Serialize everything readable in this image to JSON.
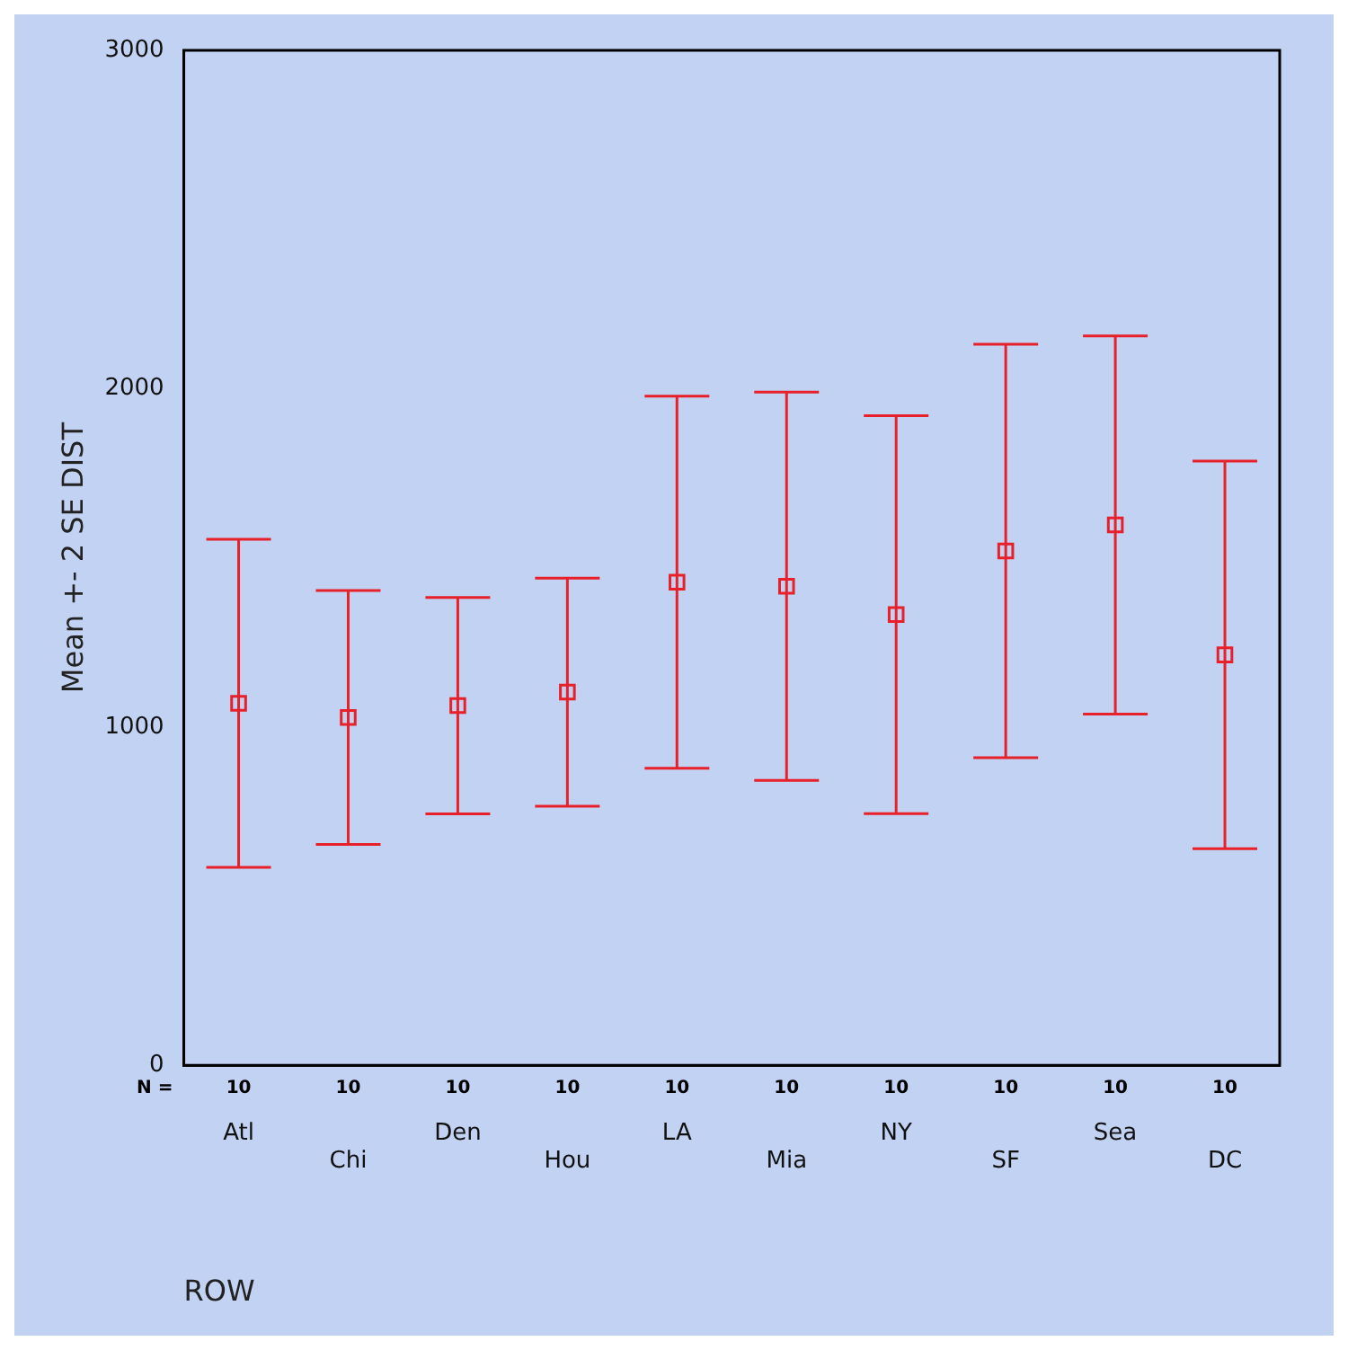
{
  "chart_data": {
    "type": "scatter",
    "ylabel": "Mean +- 2 SE DIST",
    "xlabel": "ROW",
    "categories": [
      "Atl",
      "Chi",
      "Den",
      "Hou",
      "LA",
      "Mia",
      "NY",
      "SF",
      "Sea",
      "DC"
    ],
    "values": [
      1070,
      1028,
      1063,
      1103,
      1428,
      1416,
      1332,
      1520,
      1597,
      1213
    ],
    "errors": [
      485,
      375,
      320,
      337,
      550,
      574,
      588,
      611,
      559,
      573
    ],
    "color": "#e8202a",
    "marker": "square",
    "grid": false,
    "legend": false,
    "ylim": [
      0,
      3000
    ],
    "yticks": [
      0,
      1000,
      2000,
      3000
    ],
    "annotations": [
      "N =",
      "10",
      "10",
      "10",
      "10",
      "10",
      "10",
      "10",
      "10",
      "10",
      "10"
    ]
  }
}
